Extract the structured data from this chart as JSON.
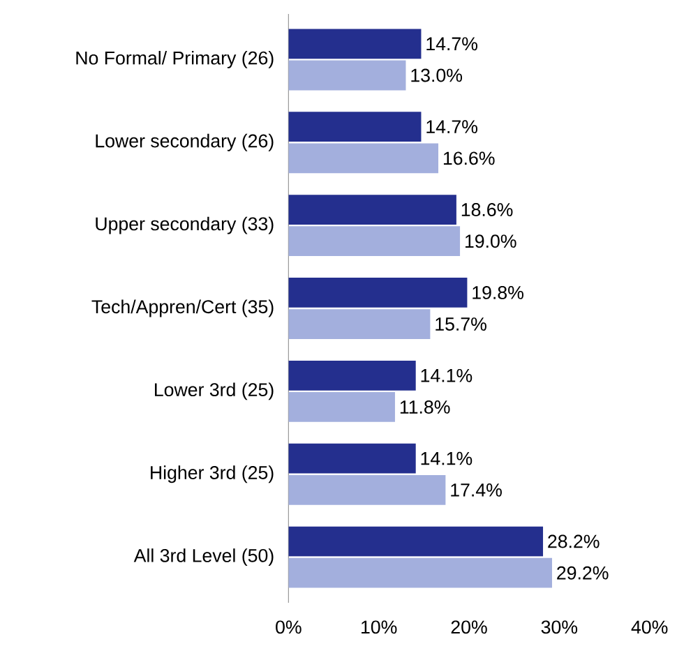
{
  "chart_data": {
    "type": "bar",
    "orientation": "horizontal",
    "categories": [
      "No Formal/ Primary (26)",
      "Lower secondary (26)",
      "Upper secondary (33)",
      "Tech/Appren/Cert (35)",
      "Lower 3rd (25)",
      "Higher 3rd (25)",
      "All 3rd Level (50)"
    ],
    "series": [
      {
        "color": "#242f8e",
        "values": [
          14.7,
          14.7,
          18.6,
          19.8,
          14.1,
          14.1,
          28.2
        ],
        "value_labels": [
          "14.7%",
          "14.7%",
          "18.6%",
          "19.8%",
          "14.1%",
          "14.1%",
          "28.2%"
        ]
      },
      {
        "color": "#a3afdd",
        "values": [
          13.0,
          16.6,
          19.0,
          15.7,
          11.8,
          17.4,
          29.2
        ],
        "value_labels": [
          "13.0%",
          "16.6%",
          "19.0%",
          "15.7%",
          "11.8%",
          "17.4%",
          "29.2%"
        ]
      }
    ],
    "xlim": [
      0,
      40
    ],
    "xticks": [
      {
        "value": 0,
        "label": "0%"
      },
      {
        "value": 10,
        "label": "10%"
      },
      {
        "value": 20,
        "label": "20%"
      },
      {
        "value": 30,
        "label": "30%"
      },
      {
        "value": 40,
        "label": "40%"
      }
    ]
  }
}
